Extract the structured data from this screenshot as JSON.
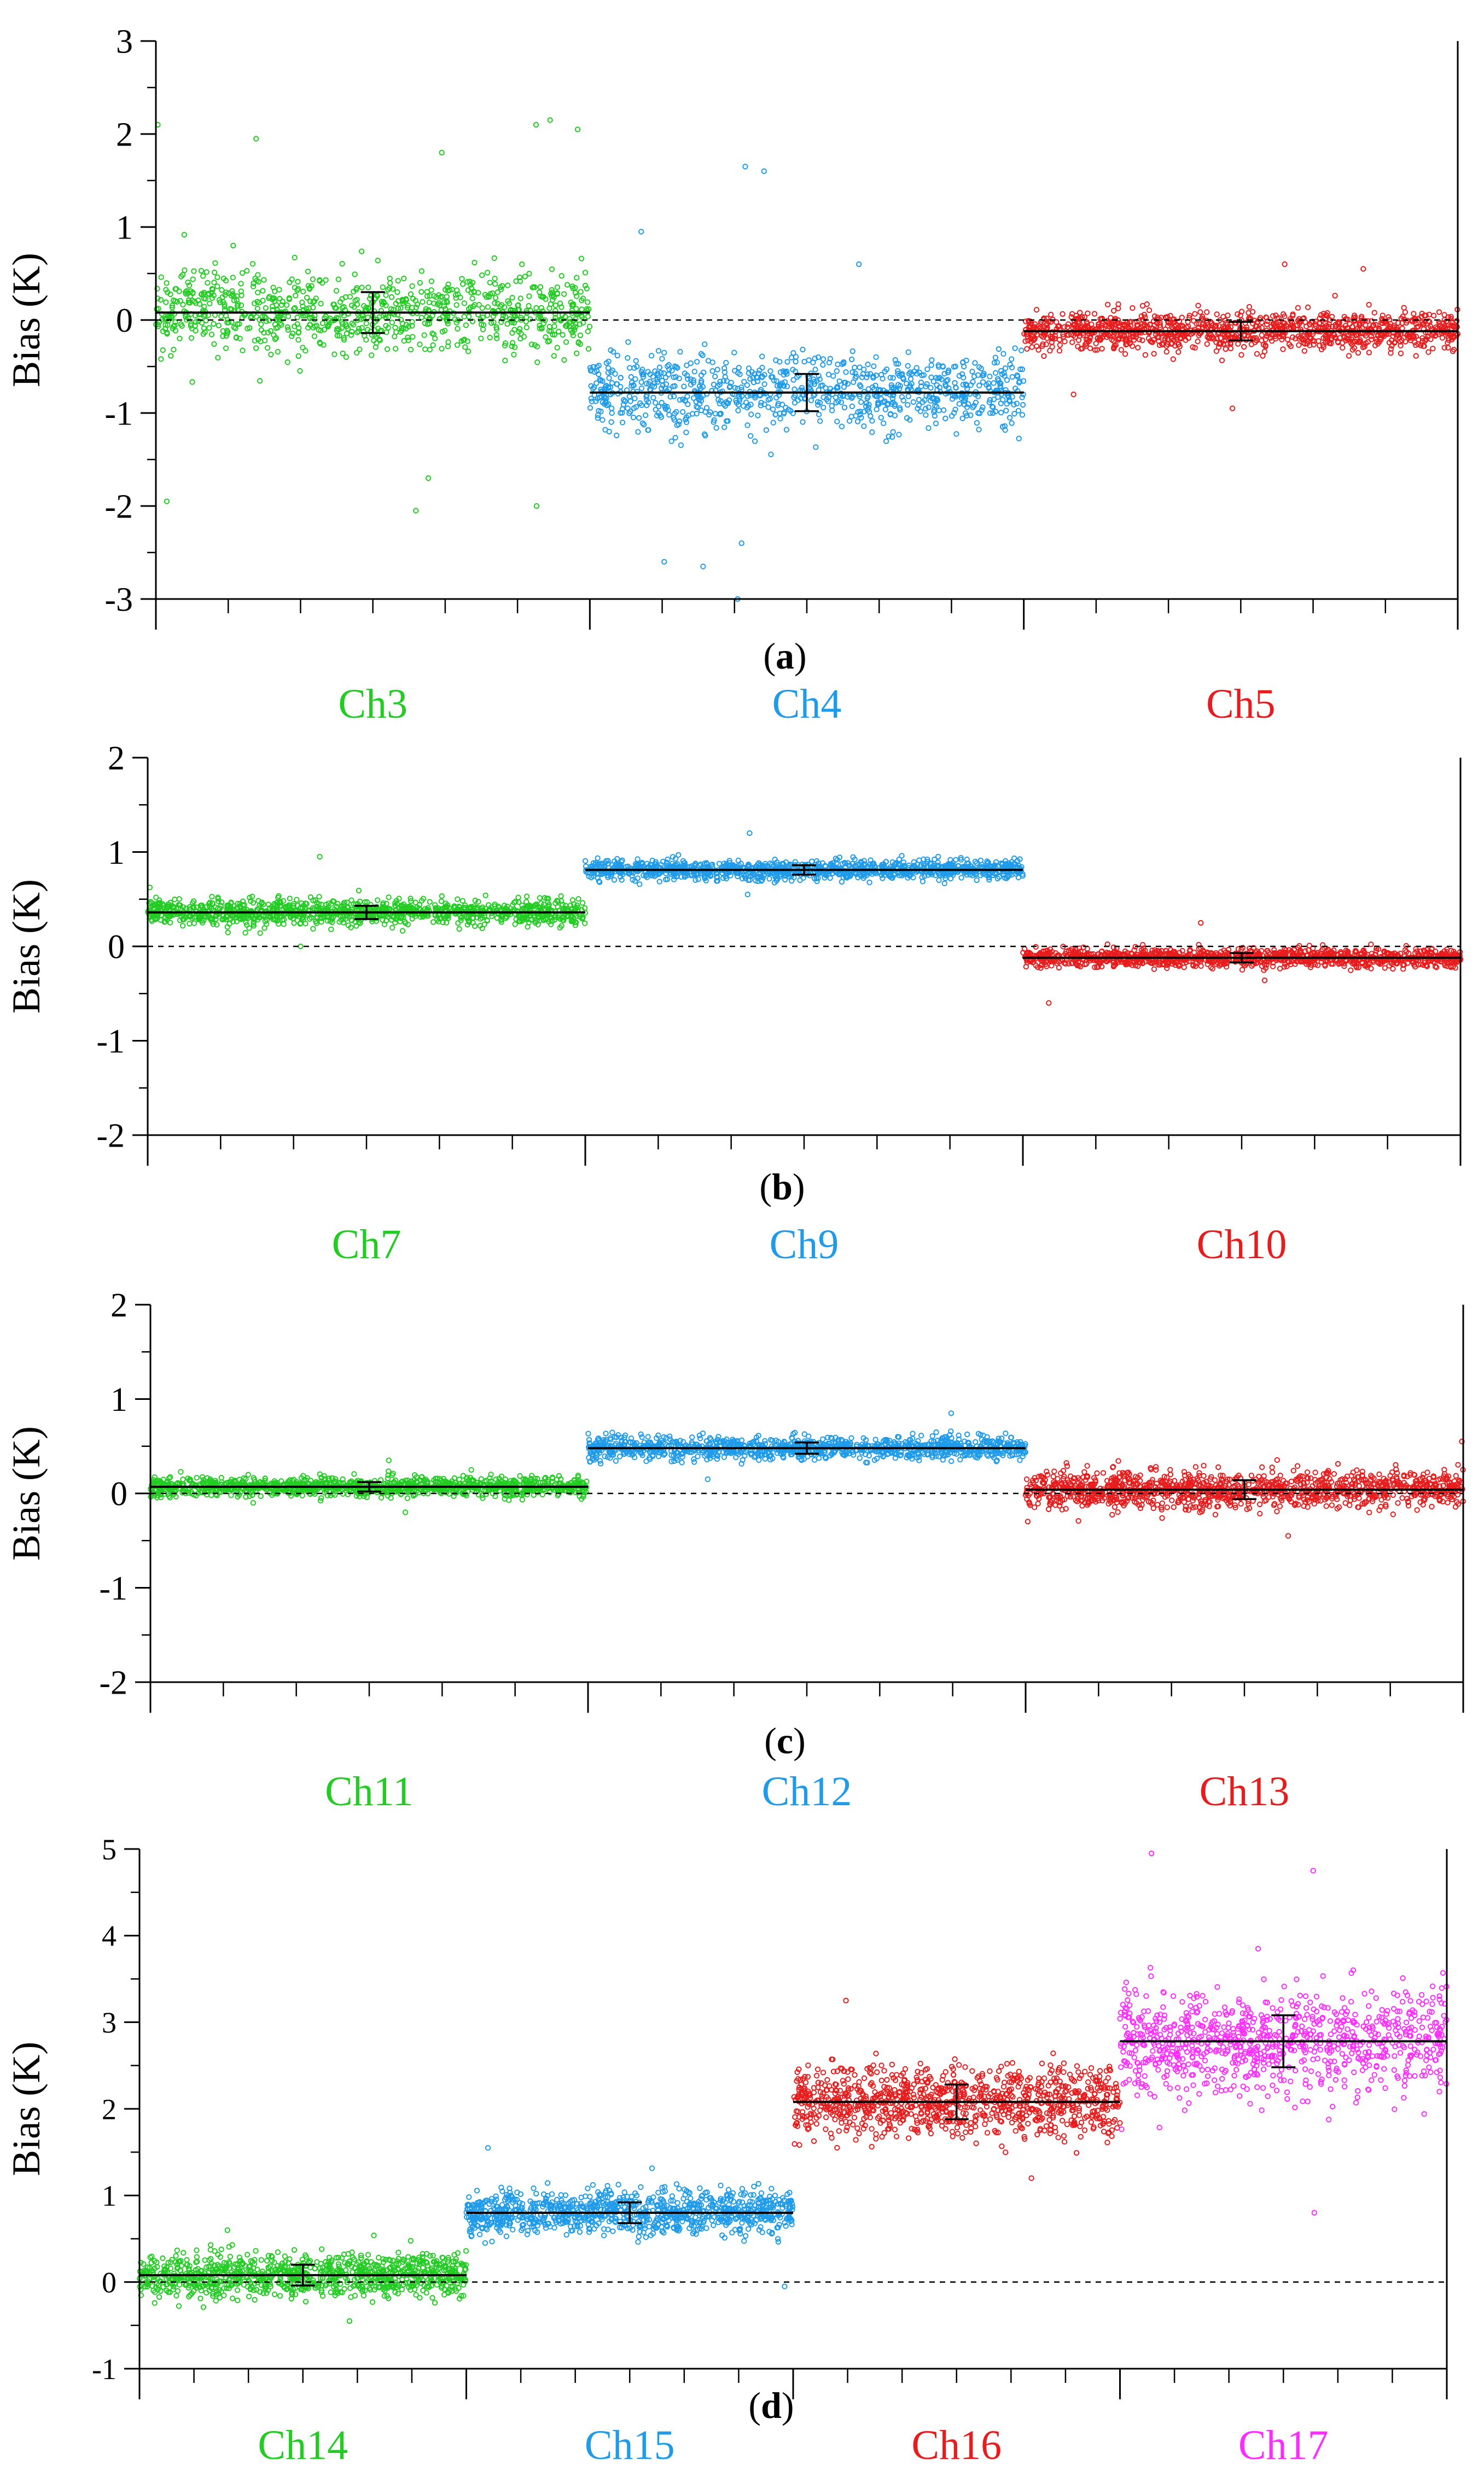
{
  "figure": {
    "type": "multi-panel scatter"
  },
  "colors": {
    "green": "#22cc22",
    "blue": "#1f9bea",
    "red": "#e81c1c",
    "magenta": "#ff2cff",
    "axis": "#000000"
  },
  "chart_data": [
    {
      "type": "scatter",
      "panel_label": "a",
      "ylabel": "Bias (K)",
      "ylim": [
        -3,
        3
      ],
      "yticks": [
        "3",
        "2",
        "1",
        "0",
        "-1",
        "-2",
        "-3"
      ],
      "reference_line": 0,
      "series": [
        {
          "name": "Ch3",
          "color": "#22cc22",
          "mean": 0.08,
          "std": 0.22,
          "count": 900,
          "outliers": [
            2.1,
            2.15,
            2.05,
            2.1,
            1.95,
            1.8,
            -2.05,
            -2.0,
            -1.95,
            -1.7
          ]
        },
        {
          "name": "Ch4",
          "color": "#1f9bea",
          "mean": -0.78,
          "std": 0.2,
          "count": 900,
          "outliers": [
            1.65,
            1.6,
            0.95,
            0.6,
            -2.65,
            -3.0,
            -2.6,
            -2.4
          ]
        },
        {
          "name": "Ch5",
          "color": "#e81c1c",
          "mean": -0.12,
          "std": 0.1,
          "count": 1100,
          "outliers": [
            0.6,
            0.55,
            -0.95,
            -0.8
          ]
        }
      ]
    },
    {
      "type": "scatter",
      "panel_label": "b",
      "ylabel": "Bias (K)",
      "ylim": [
        -2,
        2
      ],
      "yticks": [
        "2",
        "1",
        "0",
        "-1",
        "-2"
      ],
      "reference_line": 0,
      "series": [
        {
          "name": "Ch7",
          "color": "#22cc22",
          "mean": 0.36,
          "std": 0.07,
          "count": 1100,
          "outliers": [
            0.95,
            0.0
          ]
        },
        {
          "name": "Ch9",
          "color": "#1f9bea",
          "mean": 0.81,
          "std": 0.05,
          "count": 1100,
          "outliers": [
            1.2,
            0.55
          ]
        },
        {
          "name": "Ch10",
          "color": "#e81c1c",
          "mean": -0.12,
          "std": 0.05,
          "count": 1100,
          "outliers": [
            -0.6,
            0.25
          ]
        }
      ]
    },
    {
      "type": "scatter",
      "panel_label": "c",
      "ylabel": "Bias (K)",
      "ylim": [
        -2,
        2
      ],
      "yticks": [
        "2",
        "1",
        "0",
        "-1",
        "-2"
      ],
      "reference_line": 0,
      "series": [
        {
          "name": "Ch11",
          "color": "#22cc22",
          "mean": 0.07,
          "std": 0.05,
          "count": 1100,
          "outliers": [
            0.35,
            -0.2
          ]
        },
        {
          "name": "Ch12",
          "color": "#1f9bea",
          "mean": 0.48,
          "std": 0.06,
          "count": 1100,
          "outliers": [
            0.85,
            0.15
          ]
        },
        {
          "name": "Ch13",
          "color": "#e81c1c",
          "mean": 0.04,
          "std": 0.1,
          "count": 1200,
          "outliers": [
            0.55,
            -0.45
          ]
        }
      ]
    },
    {
      "type": "scatter",
      "panel_label": "d",
      "ylabel": "Bias (K)",
      "ylim": [
        -1,
        5
      ],
      "yticks": [
        "5",
        "4",
        "3",
        "2",
        "1",
        "0",
        "-1"
      ],
      "reference_line": 0,
      "series": [
        {
          "name": "Ch14",
          "color": "#22cc22",
          "mean": 0.08,
          "std": 0.12,
          "count": 1000,
          "outliers": [
            0.6,
            -0.45
          ]
        },
        {
          "name": "Ch15",
          "color": "#1f9bea",
          "mean": 0.8,
          "std": 0.12,
          "count": 1000,
          "outliers": [
            1.55,
            -0.05
          ]
        },
        {
          "name": "Ch16",
          "color": "#e81c1c",
          "mean": 2.08,
          "std": 0.2,
          "count": 1000,
          "outliers": [
            3.25,
            1.2
          ]
        },
        {
          "name": "Ch17",
          "color": "#ff2cff",
          "mean": 2.78,
          "std": 0.3,
          "count": 900,
          "outliers": [
            4.95,
            4.75,
            0.8
          ]
        }
      ]
    }
  ]
}
